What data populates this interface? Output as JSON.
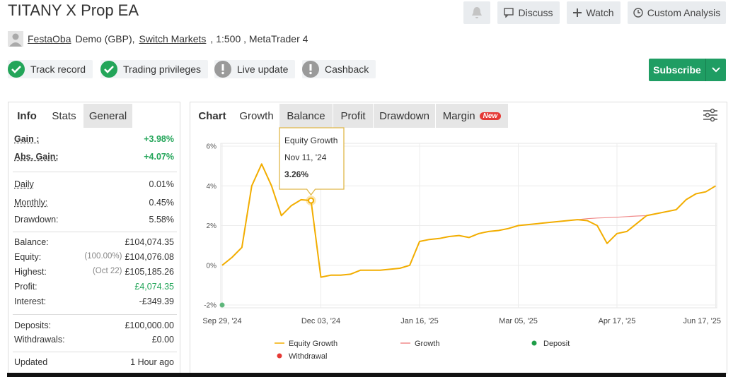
{
  "header": {
    "title": "TITANY X Prop EA",
    "user": "FestaOba",
    "account": "Demo (GBP),",
    "broker": "Switch Markets",
    "details": ", 1:500 , MetaTrader 4"
  },
  "buttons": [
    "Discuss",
    "Watch",
    "Custom Analysis"
  ],
  "badges": [
    "Track record",
    "Trading privileges",
    "Live update",
    "Cashback"
  ],
  "subscribe": "Subscribe",
  "side_tabs": [
    "Info",
    "Stats",
    "General"
  ],
  "stats": [
    [
      {
        "label": "Gain :",
        "value": "+3.98%"
      },
      {
        "label": "Abs. Gain:",
        "value": "+4.07%"
      }
    ],
    [
      {
        "label": "Daily",
        "value": "0.01%"
      },
      {
        "label": "Monthly:",
        "value": "0.45%"
      },
      {
        "label": "Drawdown:",
        "value": "5.58%"
      }
    ],
    [
      {
        "label": "Balance:",
        "value": "£104,074.35"
      },
      {
        "label": "Equity:",
        "note": "(100.00%)",
        "value": "£104,076.08"
      },
      {
        "label": "Highest:",
        "note": "(Oct 22)",
        "value": "£105,185.26"
      },
      {
        "label": "Profit:",
        "value": "£4,074.35"
      },
      {
        "label": "Interest:",
        "value": "-£349.39"
      }
    ],
    [
      {
        "label": "Deposits:",
        "value": "£100,000.00"
      },
      {
        "label": "Withdrawals:",
        "value": "£0.00"
      }
    ],
    [
      {
        "label": "Updated",
        "value": "1 Hour ago"
      }
    ]
  ],
  "chart_tabs": [
    "Chart",
    "Growth",
    "Balance",
    "Profit",
    "Drawdown",
    "Margin"
  ],
  "new_badge": "New",
  "chart_data": {
    "type": "line",
    "categories": [
      "Sep 29, '24",
      null,
      null,
      null,
      null,
      null,
      null,
      null,
      null,
      null,
      "Dec 03, '24",
      null,
      null,
      null,
      null,
      null,
      null,
      null,
      null,
      null,
      "Jan 16, '25",
      null,
      null,
      null,
      null,
      null,
      null,
      null,
      null,
      null,
      "Mar 05, '25",
      null,
      null,
      null,
      null,
      null,
      null,
      null,
      null,
      null,
      "Apr 17, '25",
      null,
      null,
      null,
      null,
      null,
      null,
      null,
      null,
      null,
      "Jun 17, '25"
    ],
    "ylim": [
      -2,
      6
    ],
    "yticks": [
      {
        "value": -2,
        "label": "-2%"
      },
      {
        "value": 0,
        "label": "0%"
      },
      {
        "value": 2,
        "label": "2%"
      },
      {
        "value": 4,
        "label": "4%"
      },
      {
        "value": 6,
        "label": "6%"
      }
    ],
    "grid": true,
    "series": [
      {
        "name": "Growth",
        "color": "#f08a8a",
        "values": [
          0.0,
          0.4,
          0.9,
          4.0,
          5.1,
          4.0,
          2.5,
          3.0,
          3.3,
          3.26,
          -0.6,
          -0.5,
          -0.5,
          -0.45,
          -0.25,
          -0.25,
          -0.25,
          -0.2,
          -0.15,
          0.0,
          1.2,
          1.3,
          1.35,
          1.45,
          1.5,
          1.4,
          1.6,
          1.7,
          1.75,
          1.85,
          2.0,
          2.05,
          2.1,
          2.15,
          2.2,
          2.25,
          2.3,
          2.35,
          2.38,
          2.4,
          2.42,
          2.45,
          2.48,
          2.5,
          2.6,
          2.7,
          2.8,
          3.3,
          3.6,
          3.7,
          4.0
        ]
      },
      {
        "name": "Equity Growth",
        "color": "#f2ad00",
        "values": [
          0.0,
          0.4,
          0.9,
          4.0,
          5.1,
          4.0,
          2.5,
          3.0,
          3.3,
          3.26,
          -0.6,
          -0.5,
          -0.5,
          -0.45,
          -0.25,
          -0.25,
          -0.25,
          -0.2,
          -0.15,
          0.0,
          1.2,
          1.3,
          1.35,
          1.45,
          1.5,
          1.4,
          1.6,
          1.7,
          1.75,
          1.85,
          2.0,
          2.05,
          2.1,
          2.15,
          2.2,
          2.25,
          2.3,
          2.25,
          2.0,
          1.1,
          1.6,
          1.7,
          2.1,
          2.5,
          2.6,
          2.7,
          2.8,
          3.3,
          3.6,
          3.7,
          4.0
        ]
      },
      {
        "name": "Deposit",
        "color": "#1f9d48",
        "values": [
          -2,
          null,
          null,
          null,
          null,
          null,
          null,
          null,
          null,
          null,
          null,
          null,
          null,
          null,
          null,
          null,
          null,
          null,
          null,
          null,
          null,
          null,
          null,
          null,
          null,
          null,
          null,
          null,
          null,
          null,
          null,
          null,
          null,
          null,
          null,
          null,
          null,
          null,
          null,
          null,
          null,
          null,
          null,
          null,
          null,
          null,
          null,
          null,
          null,
          null,
          null
        ]
      },
      {
        "name": "Withdrawal",
        "color": "#e53935",
        "values": [
          null,
          null,
          null,
          null,
          null,
          null,
          null,
          null,
          null,
          null,
          null,
          null,
          null,
          null,
          null,
          null,
          null,
          null,
          null,
          null,
          null,
          null,
          null,
          null,
          null,
          null,
          null,
          null,
          null,
          null,
          null,
          null,
          null,
          null,
          null,
          null,
          null,
          null,
          null,
          null,
          null,
          null,
          null,
          null,
          null,
          null,
          null,
          null,
          null,
          null,
          null
        ]
      }
    ],
    "tooltip": {
      "series": "Equity Growth",
      "date": "Nov 11, '24",
      "value": 3.26,
      "value_label": "3.26%"
    }
  }
}
